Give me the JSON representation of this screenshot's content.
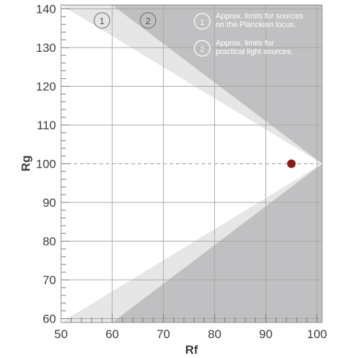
{
  "chart_data": {
    "type": "scatter",
    "xlabel": "Rf",
    "ylabel": "Rg",
    "xlim": [
      50,
      101
    ],
    "ylim": [
      59,
      141
    ],
    "x_ticks": [
      50,
      60,
      70,
      80,
      90,
      100
    ],
    "y_ticks": [
      60,
      70,
      80,
      90,
      100,
      110,
      120,
      130,
      140
    ],
    "x_tick_labels": [
      "50",
      "60",
      "70",
      "80",
      "90",
      "100"
    ],
    "y_tick_labels": [
      "60",
      "70",
      "80",
      "90",
      "100",
      "110",
      "120",
      "130",
      "140"
    ],
    "reference_line": {
      "y": 100,
      "style": "dashed"
    },
    "regions": [
      {
        "id": "1",
        "label": "Approx. limits for sources on the Planckian locus.",
        "vertex": [
          101,
          100
        ],
        "upper_edge_end": [
          50,
          141
        ],
        "lower_edge_end": [
          50,
          59
        ],
        "color": "#e6e6e6"
      },
      {
        "id": "2",
        "label": "Approx. limits for practical light sources.",
        "vertex": [
          101,
          100
        ],
        "upper_edge_end": [
          60,
          141
        ],
        "lower_edge_end": [
          60,
          59
        ],
        "color": "#c0c0c2"
      }
    ],
    "region_markers": [
      {
        "text": "1",
        "x": 58,
        "y": 137
      },
      {
        "text": "2",
        "x": 67,
        "y": 137
      }
    ],
    "points": [
      {
        "x": 95,
        "y": 100,
        "color": "#8b1a1a"
      }
    ],
    "legend": {
      "position": "top-right",
      "items": [
        {
          "marker": "1",
          "text_lines": [
            "Approx. limits for sources",
            "on the Planckian locus."
          ]
        },
        {
          "marker": "2",
          "text_lines": [
            "Approx. limits for",
            "practical light sources."
          ]
        }
      ]
    },
    "grid": true
  }
}
